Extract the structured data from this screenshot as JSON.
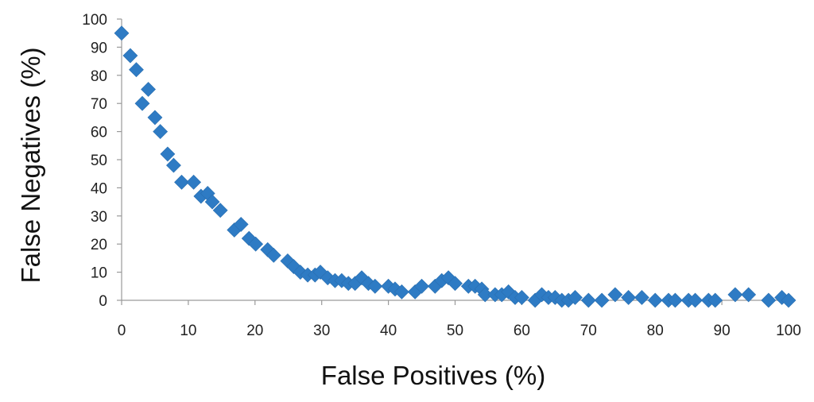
{
  "chart_data": {
    "type": "scatter",
    "title": "",
    "xlabel": "False Positives (%)",
    "ylabel": "False Negatives (%)",
    "xlim": [
      0,
      100
    ],
    "ylim": [
      0,
      100
    ],
    "xticks": [
      "0",
      "10",
      "20",
      "30",
      "40",
      "50",
      "60",
      "70",
      "80",
      "90",
      "100"
    ],
    "yticks": [
      "0",
      "10",
      "20",
      "30",
      "40",
      "50",
      "60",
      "70",
      "80",
      "90",
      "100"
    ],
    "grid": false,
    "legend": "none",
    "marker": "diamond",
    "color": "#2E7BC4",
    "series": [
      {
        "points": [
          [
            0.0,
            95
          ],
          [
            1.3,
            87
          ],
          [
            2.2,
            82
          ],
          [
            3.1,
            70
          ],
          [
            4.0,
            75
          ],
          [
            5.0,
            65
          ],
          [
            5.8,
            60
          ],
          [
            6.9,
            52
          ],
          [
            7.8,
            48
          ],
          [
            9.0,
            42
          ],
          [
            10.8,
            42
          ],
          [
            11.9,
            37
          ],
          [
            12.9,
            38
          ],
          [
            13.6,
            35
          ],
          [
            14.8,
            32
          ],
          [
            16.9,
            25
          ],
          [
            17.9,
            27
          ],
          [
            19.1,
            22
          ],
          [
            20.1,
            20
          ],
          [
            21.9,
            18
          ],
          [
            22.8,
            16
          ],
          [
            24.9,
            14
          ],
          [
            25.8,
            12
          ],
          [
            26.8,
            10
          ],
          [
            27.9,
            9
          ],
          [
            29.0,
            9
          ],
          [
            29.8,
            10
          ],
          [
            30.9,
            8
          ],
          [
            32.0,
            7
          ],
          [
            33.0,
            7
          ],
          [
            34.0,
            6
          ],
          [
            35.0,
            6
          ],
          [
            36.0,
            8
          ],
          [
            37.0,
            6
          ],
          [
            38.0,
            5
          ],
          [
            40.0,
            5
          ],
          [
            41.0,
            4
          ],
          [
            42.0,
            3
          ],
          [
            44.0,
            3
          ],
          [
            45.0,
            5
          ],
          [
            47.0,
            5
          ],
          [
            48.0,
            7
          ],
          [
            49.0,
            8
          ],
          [
            50.0,
            6
          ],
          [
            52.0,
            5
          ],
          [
            53.0,
            5
          ],
          [
            54.0,
            4
          ],
          [
            54.5,
            2
          ],
          [
            56.0,
            2
          ],
          [
            57.0,
            2
          ],
          [
            58.0,
            3
          ],
          [
            59.0,
            1
          ],
          [
            60.0,
            1
          ],
          [
            62.0,
            0
          ],
          [
            63.0,
            2
          ],
          [
            64.0,
            1
          ],
          [
            65.0,
            1
          ],
          [
            66.0,
            0
          ],
          [
            67.0,
            0
          ],
          [
            68.0,
            1
          ],
          [
            70.0,
            0
          ],
          [
            72.0,
            0
          ],
          [
            74.0,
            2
          ],
          [
            76.0,
            1
          ],
          [
            78.0,
            1
          ],
          [
            80.0,
            0
          ],
          [
            82.0,
            0
          ],
          [
            83.0,
            0
          ],
          [
            85.0,
            0
          ],
          [
            86.0,
            0
          ],
          [
            88.0,
            0
          ],
          [
            89.0,
            0
          ],
          [
            92.0,
            2
          ],
          [
            94.0,
            2
          ],
          [
            97.0,
            0
          ],
          [
            99.0,
            1
          ],
          [
            100.0,
            0
          ]
        ]
      }
    ]
  }
}
